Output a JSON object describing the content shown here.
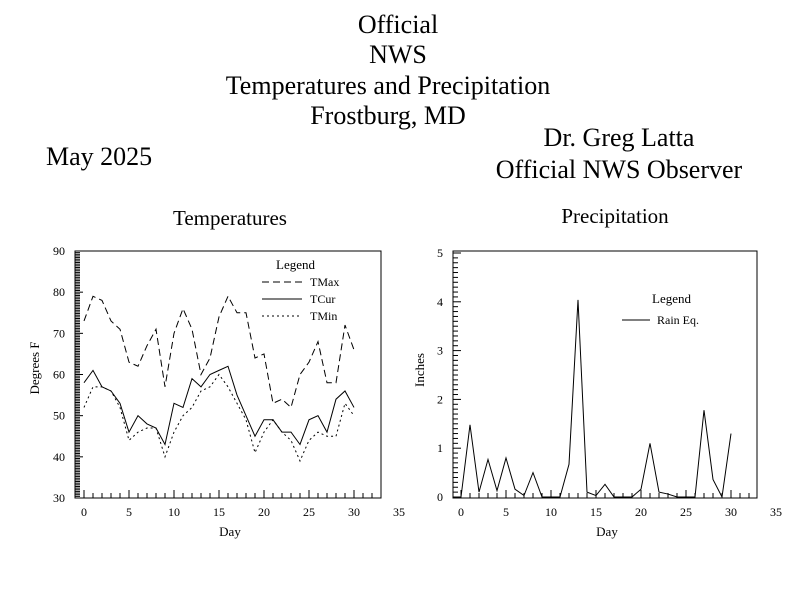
{
  "header": {
    "line1": "Official",
    "line2": "NWS",
    "line3": "Temperatures and Precipitation",
    "line4": "Frostburg, MD",
    "month": "May 2025",
    "observer_name": "Dr. Greg Latta",
    "observer_title": "Official NWS Observer"
  },
  "chart_data": [
    {
      "type": "line",
      "title": "Temperatures",
      "xlabel": "Day",
      "ylabel": "Degrees F",
      "xlim": [
        0,
        35
      ],
      "ylim": [
        30,
        90
      ],
      "xticks": [
        0,
        5,
        10,
        15,
        20,
        25,
        30,
        35
      ],
      "yticks": [
        30,
        40,
        50,
        60,
        70,
        80,
        90
      ],
      "legend": {
        "title": "Legend",
        "placement": "top-right"
      },
      "x": [
        0,
        1,
        2,
        3,
        4,
        5,
        6,
        7,
        8,
        9,
        10,
        11,
        12,
        13,
        14,
        15,
        16,
        17,
        18,
        19,
        20,
        21,
        22,
        23,
        24,
        25,
        26,
        27,
        28,
        29,
        30
      ],
      "series": [
        {
          "name": "TMax",
          "style": "dashed",
          "values": [
            73,
            79,
            78,
            73,
            71,
            63,
            62,
            67,
            71,
            57,
            70,
            76,
            71,
            60,
            64,
            74,
            79,
            75,
            75,
            64,
            65,
            53,
            54,
            52,
            60,
            63,
            68,
            58,
            58,
            72,
            66
          ]
        },
        {
          "name": "TCur",
          "style": "solid",
          "values": [
            58,
            61,
            57,
            56,
            53,
            46,
            50,
            48,
            47,
            43,
            53,
            52,
            59,
            57,
            60,
            61,
            62,
            55,
            50,
            45,
            49,
            49,
            46,
            46,
            43,
            49,
            50,
            46,
            54,
            56,
            52
          ]
        },
        {
          "name": "TMin",
          "style": "dotted",
          "values": [
            52,
            57,
            57,
            56,
            52,
            44,
            46,
            47,
            47,
            40,
            46,
            50,
            52,
            56,
            57,
            60,
            57,
            53,
            49,
            41,
            46,
            49,
            46,
            44,
            39,
            44,
            46,
            45,
            45,
            53,
            50
          ]
        }
      ]
    },
    {
      "type": "line",
      "title": "Precipitation",
      "xlabel": "Day",
      "ylabel": "Inches",
      "xlim": [
        0,
        35
      ],
      "ylim": [
        0,
        5
      ],
      "xticks": [
        0,
        5,
        10,
        15,
        20,
        25,
        30,
        35
      ],
      "yticks": [
        0,
        1,
        2,
        3,
        4,
        5
      ],
      "legend": {
        "title": "Legend",
        "placement": "top-right"
      },
      "x": [
        0,
        1,
        2,
        3,
        4,
        5,
        6,
        7,
        8,
        9,
        10,
        11,
        12,
        13,
        14,
        15,
        16,
        17,
        18,
        19,
        20,
        21,
        22,
        23,
        24,
        25,
        26,
        27,
        28,
        29,
        30
      ],
      "series": [
        {
          "name": "Rain Eq.",
          "style": "solid",
          "values": [
            0,
            1.48,
            0.1,
            0.77,
            0.13,
            0.8,
            0.16,
            0.03,
            0.5,
            0,
            0,
            0,
            0.67,
            4.04,
            0.1,
            0.03,
            0.26,
            0,
            0,
            0,
            0.16,
            1.1,
            0.1,
            0.06,
            0,
            0,
            0,
            1.78,
            0.36,
            0,
            1.3
          ]
        }
      ]
    }
  ]
}
